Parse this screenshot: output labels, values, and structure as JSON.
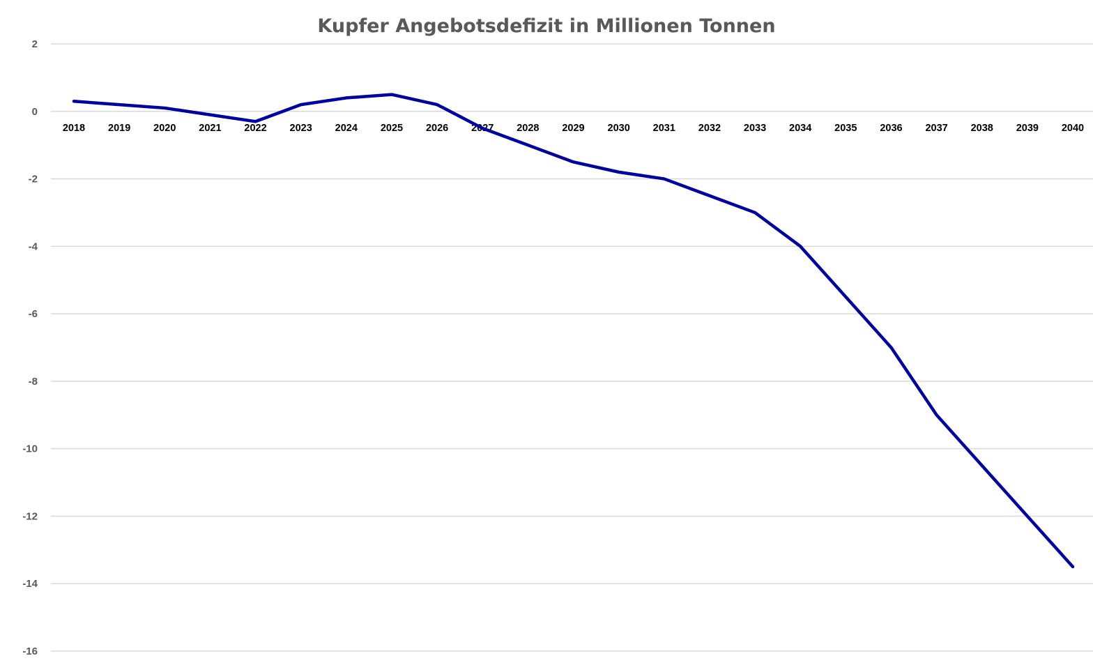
{
  "chart_data": {
    "type": "line",
    "title": "Kupfer Angebotsdefizit in Millionen Tonnen",
    "xlabel": "",
    "ylabel": "",
    "ylim": [
      -16,
      2
    ],
    "yticks": [
      "2",
      "0",
      "-2",
      "-4",
      "-6",
      "-8",
      "-10",
      "-12",
      "-14",
      "-16"
    ],
    "grid": true,
    "legend": "none",
    "categories": [
      "2018",
      "2019",
      "2020",
      "2021",
      "2022",
      "2023",
      "2024",
      "2025",
      "2026",
      "2027",
      "2028",
      "2029",
      "2030",
      "2031",
      "2032",
      "2033",
      "2034",
      "2035",
      "2036",
      "2037",
      "2038",
      "2039",
      "2040"
    ],
    "series": [
      {
        "name": "Kupfer Angebotsdefizit",
        "color": "#0000A0",
        "values": [
          0.3,
          0.2,
          0.1,
          -0.1,
          -0.3,
          0.2,
          0.4,
          0.5,
          0.2,
          -0.5,
          -1.0,
          -1.5,
          -1.8,
          -2.0,
          -2.5,
          -3.0,
          -4.0,
          -5.5,
          -7.0,
          -9.0,
          -10.5,
          -12.0,
          -13.5
        ]
      }
    ]
  }
}
